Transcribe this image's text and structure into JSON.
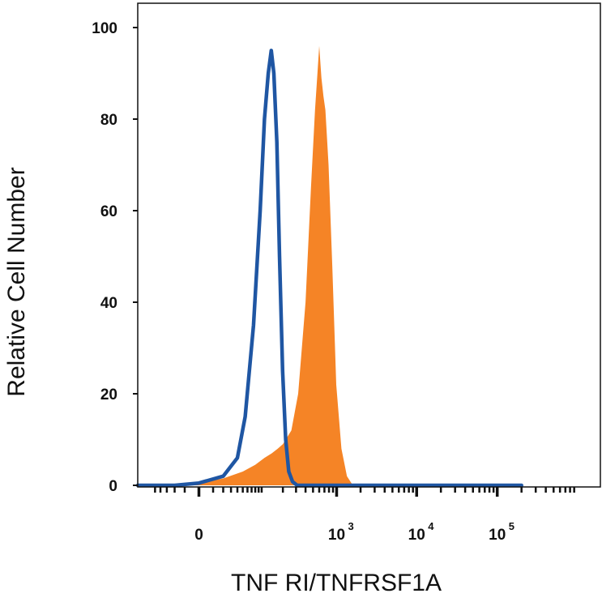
{
  "chart_data": {
    "type": "area",
    "xlabel": "TNF RI/TNFRSF1A",
    "ylabel": "Relative Cell Number",
    "ylim": [
      0,
      100
    ],
    "xscale": "biexponential",
    "grid": false,
    "legend": "none",
    "yticks": [
      {
        "value": 0,
        "label": "0"
      },
      {
        "value": 20,
        "label": "20"
      },
      {
        "value": 40,
        "label": "40"
      },
      {
        "value": 60,
        "label": "60"
      },
      {
        "value": 80,
        "label": "80"
      },
      {
        "value": 100,
        "label": "100"
      }
    ],
    "xticks": [
      {
        "value": 0,
        "base": "0",
        "exp": ""
      },
      {
        "value": 1000,
        "base": "10",
        "exp": "3"
      },
      {
        "value": 10000,
        "base": "10",
        "exp": "4"
      },
      {
        "value": 100000,
        "base": "10",
        "exp": "5"
      }
    ],
    "series": [
      {
        "style": "filled",
        "color": "#f58426",
        "points": [
          [
            -150,
            0
          ],
          [
            -50,
            0
          ],
          [
            0,
            0.5
          ],
          [
            20,
            1.5
          ],
          [
            50,
            3
          ],
          [
            80,
            4.5
          ],
          [
            110,
            6
          ],
          [
            140,
            7
          ],
          [
            170,
            8
          ],
          [
            200,
            9
          ],
          [
            260,
            12
          ],
          [
            320,
            20
          ],
          [
            400,
            40
          ],
          [
            470,
            65
          ],
          [
            530,
            82
          ],
          [
            570,
            90
          ],
          [
            600,
            96
          ],
          [
            640,
            89
          ],
          [
            680,
            85
          ],
          [
            720,
            82
          ],
          [
            790,
            70
          ],
          [
            880,
            48
          ],
          [
            990,
            22
          ],
          [
            1150,
            8
          ],
          [
            1350,
            2
          ],
          [
            1600,
            0
          ],
          [
            200000,
            0
          ]
        ]
      },
      {
        "style": "outline",
        "color": "#1f56a3",
        "points": [
          [
            -150,
            0
          ],
          [
            -20,
            0
          ],
          [
            0,
            0.5
          ],
          [
            20,
            2
          ],
          [
            40,
            6
          ],
          [
            55,
            15
          ],
          [
            75,
            35
          ],
          [
            95,
            60
          ],
          [
            110,
            80
          ],
          [
            125,
            90
          ],
          [
            138,
            95
          ],
          [
            150,
            90
          ],
          [
            165,
            75
          ],
          [
            180,
            50
          ],
          [
            198,
            25
          ],
          [
            218,
            10
          ],
          [
            240,
            3
          ],
          [
            270,
            0.8
          ],
          [
            310,
            0
          ],
          [
            200000,
            0
          ]
        ]
      }
    ]
  }
}
